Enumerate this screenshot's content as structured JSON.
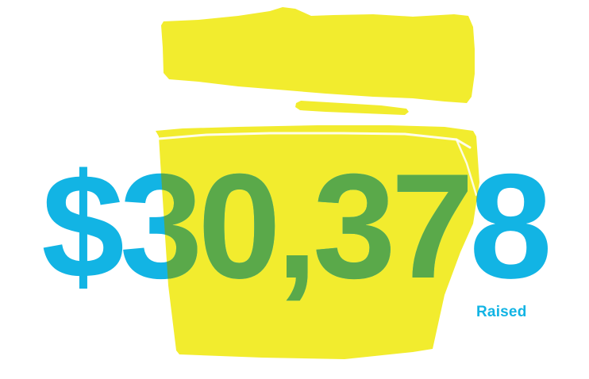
{
  "amount": {
    "text": "$30,378",
    "caption": "Raised"
  },
  "illustration": {
    "icon": "open-box-icon"
  },
  "colors": {
    "background": "#ffffff",
    "amount_text": "#12b4e4",
    "overlap_text": "#5aa94a",
    "box_fill": "#f2ec2e",
    "box_outline": "#ffffff"
  }
}
